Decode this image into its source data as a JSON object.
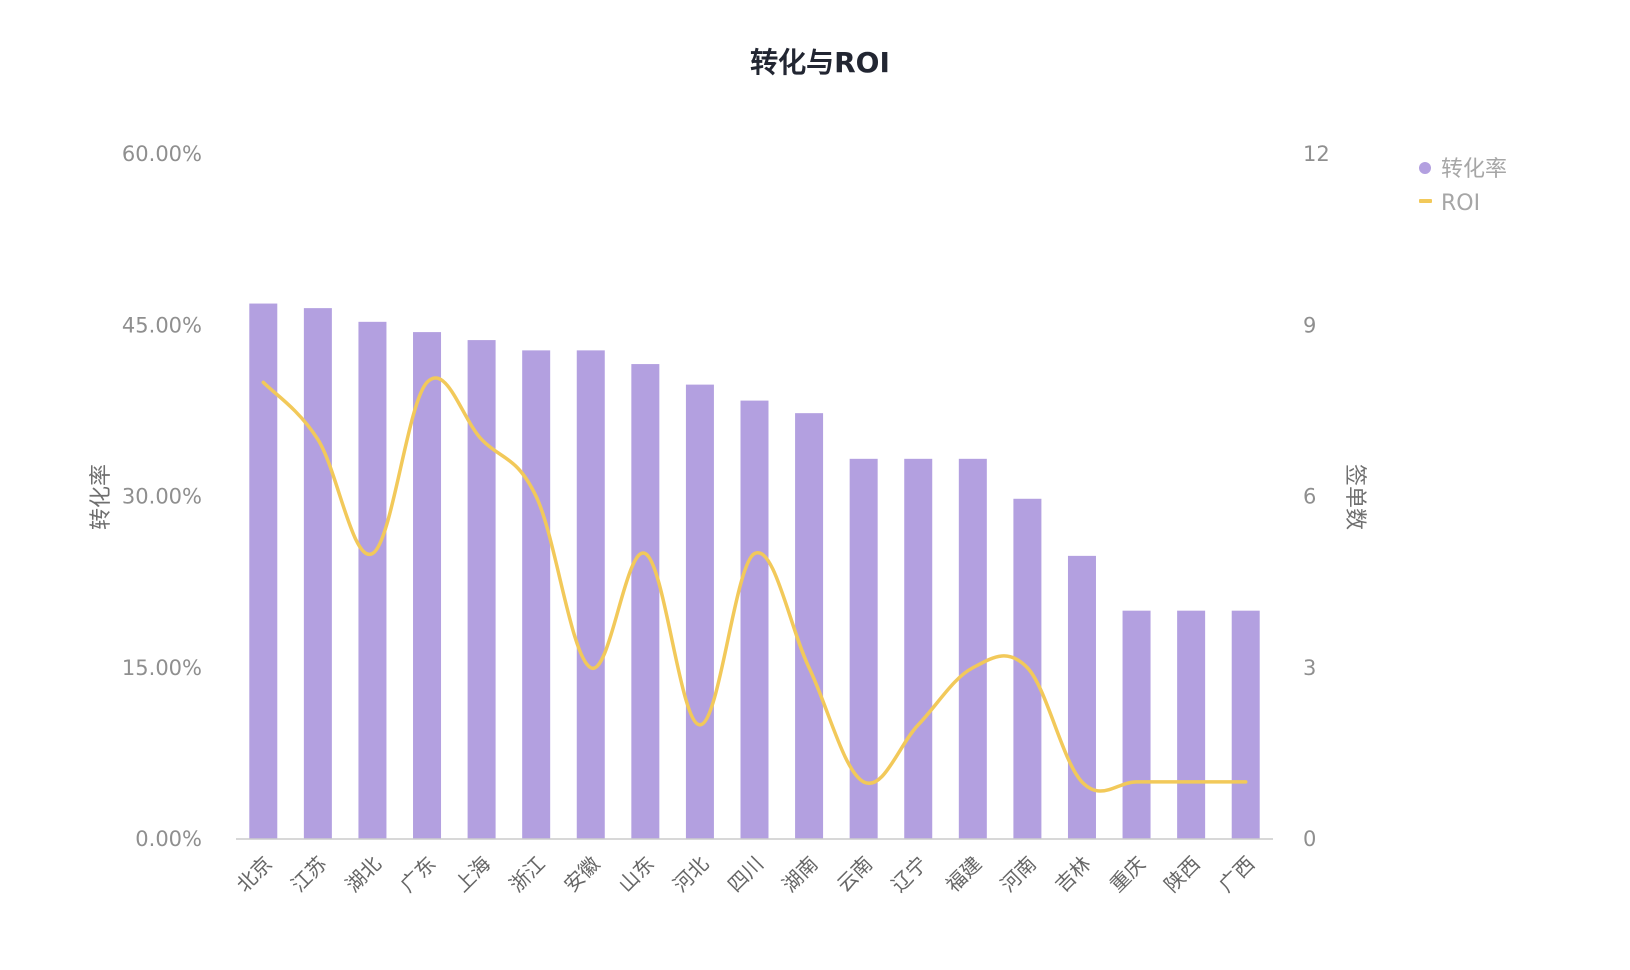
{
  "chart_data": {
    "type": "bar",
    "title": "转化与ROI",
    "categories": [
      "北京",
      "江苏",
      "湖北",
      "广东",
      "上海",
      "浙江",
      "安徽",
      "山东",
      "河北",
      "四川",
      "湖南",
      "云南",
      "辽宁",
      "福建",
      "河南",
      "吉林",
      "重庆",
      "陕西",
      "广西"
    ],
    "series": [
      {
        "name": "转化率",
        "type": "bar",
        "axis": "left",
        "color": "#b3a0e0",
        "values": [
          46.9,
          46.5,
          45.3,
          44.4,
          43.7,
          42.8,
          42.8,
          41.6,
          39.8,
          38.4,
          37.3,
          33.3,
          33.3,
          33.3,
          29.8,
          24.8,
          20.0,
          20.0,
          20.0
        ]
      },
      {
        "name": "ROI",
        "type": "line",
        "axis": "right",
        "color": "#f2c95a",
        "values": [
          8,
          7,
          5,
          8,
          7,
          6,
          3,
          5,
          2,
          5,
          3,
          1,
          2,
          3,
          3,
          1,
          1,
          1,
          1
        ]
      }
    ],
    "left_axis": {
      "label": "转化率",
      "ylim": [
        0,
        60
      ],
      "ticks": [
        0,
        15,
        30,
        45,
        60
      ],
      "tick_labels": [
        "0.00%",
        "15.00%",
        "30.00%",
        "45.00%",
        "60.00%"
      ]
    },
    "right_axis": {
      "label": "签单数",
      "ylim": [
        0,
        12
      ],
      "ticks": [
        0,
        3,
        6,
        9,
        12
      ],
      "tick_labels": [
        "0",
        "3",
        "6",
        "9",
        "12"
      ]
    },
    "legend": {
      "position": "top-right",
      "items": [
        "转化率",
        "ROI"
      ]
    }
  }
}
